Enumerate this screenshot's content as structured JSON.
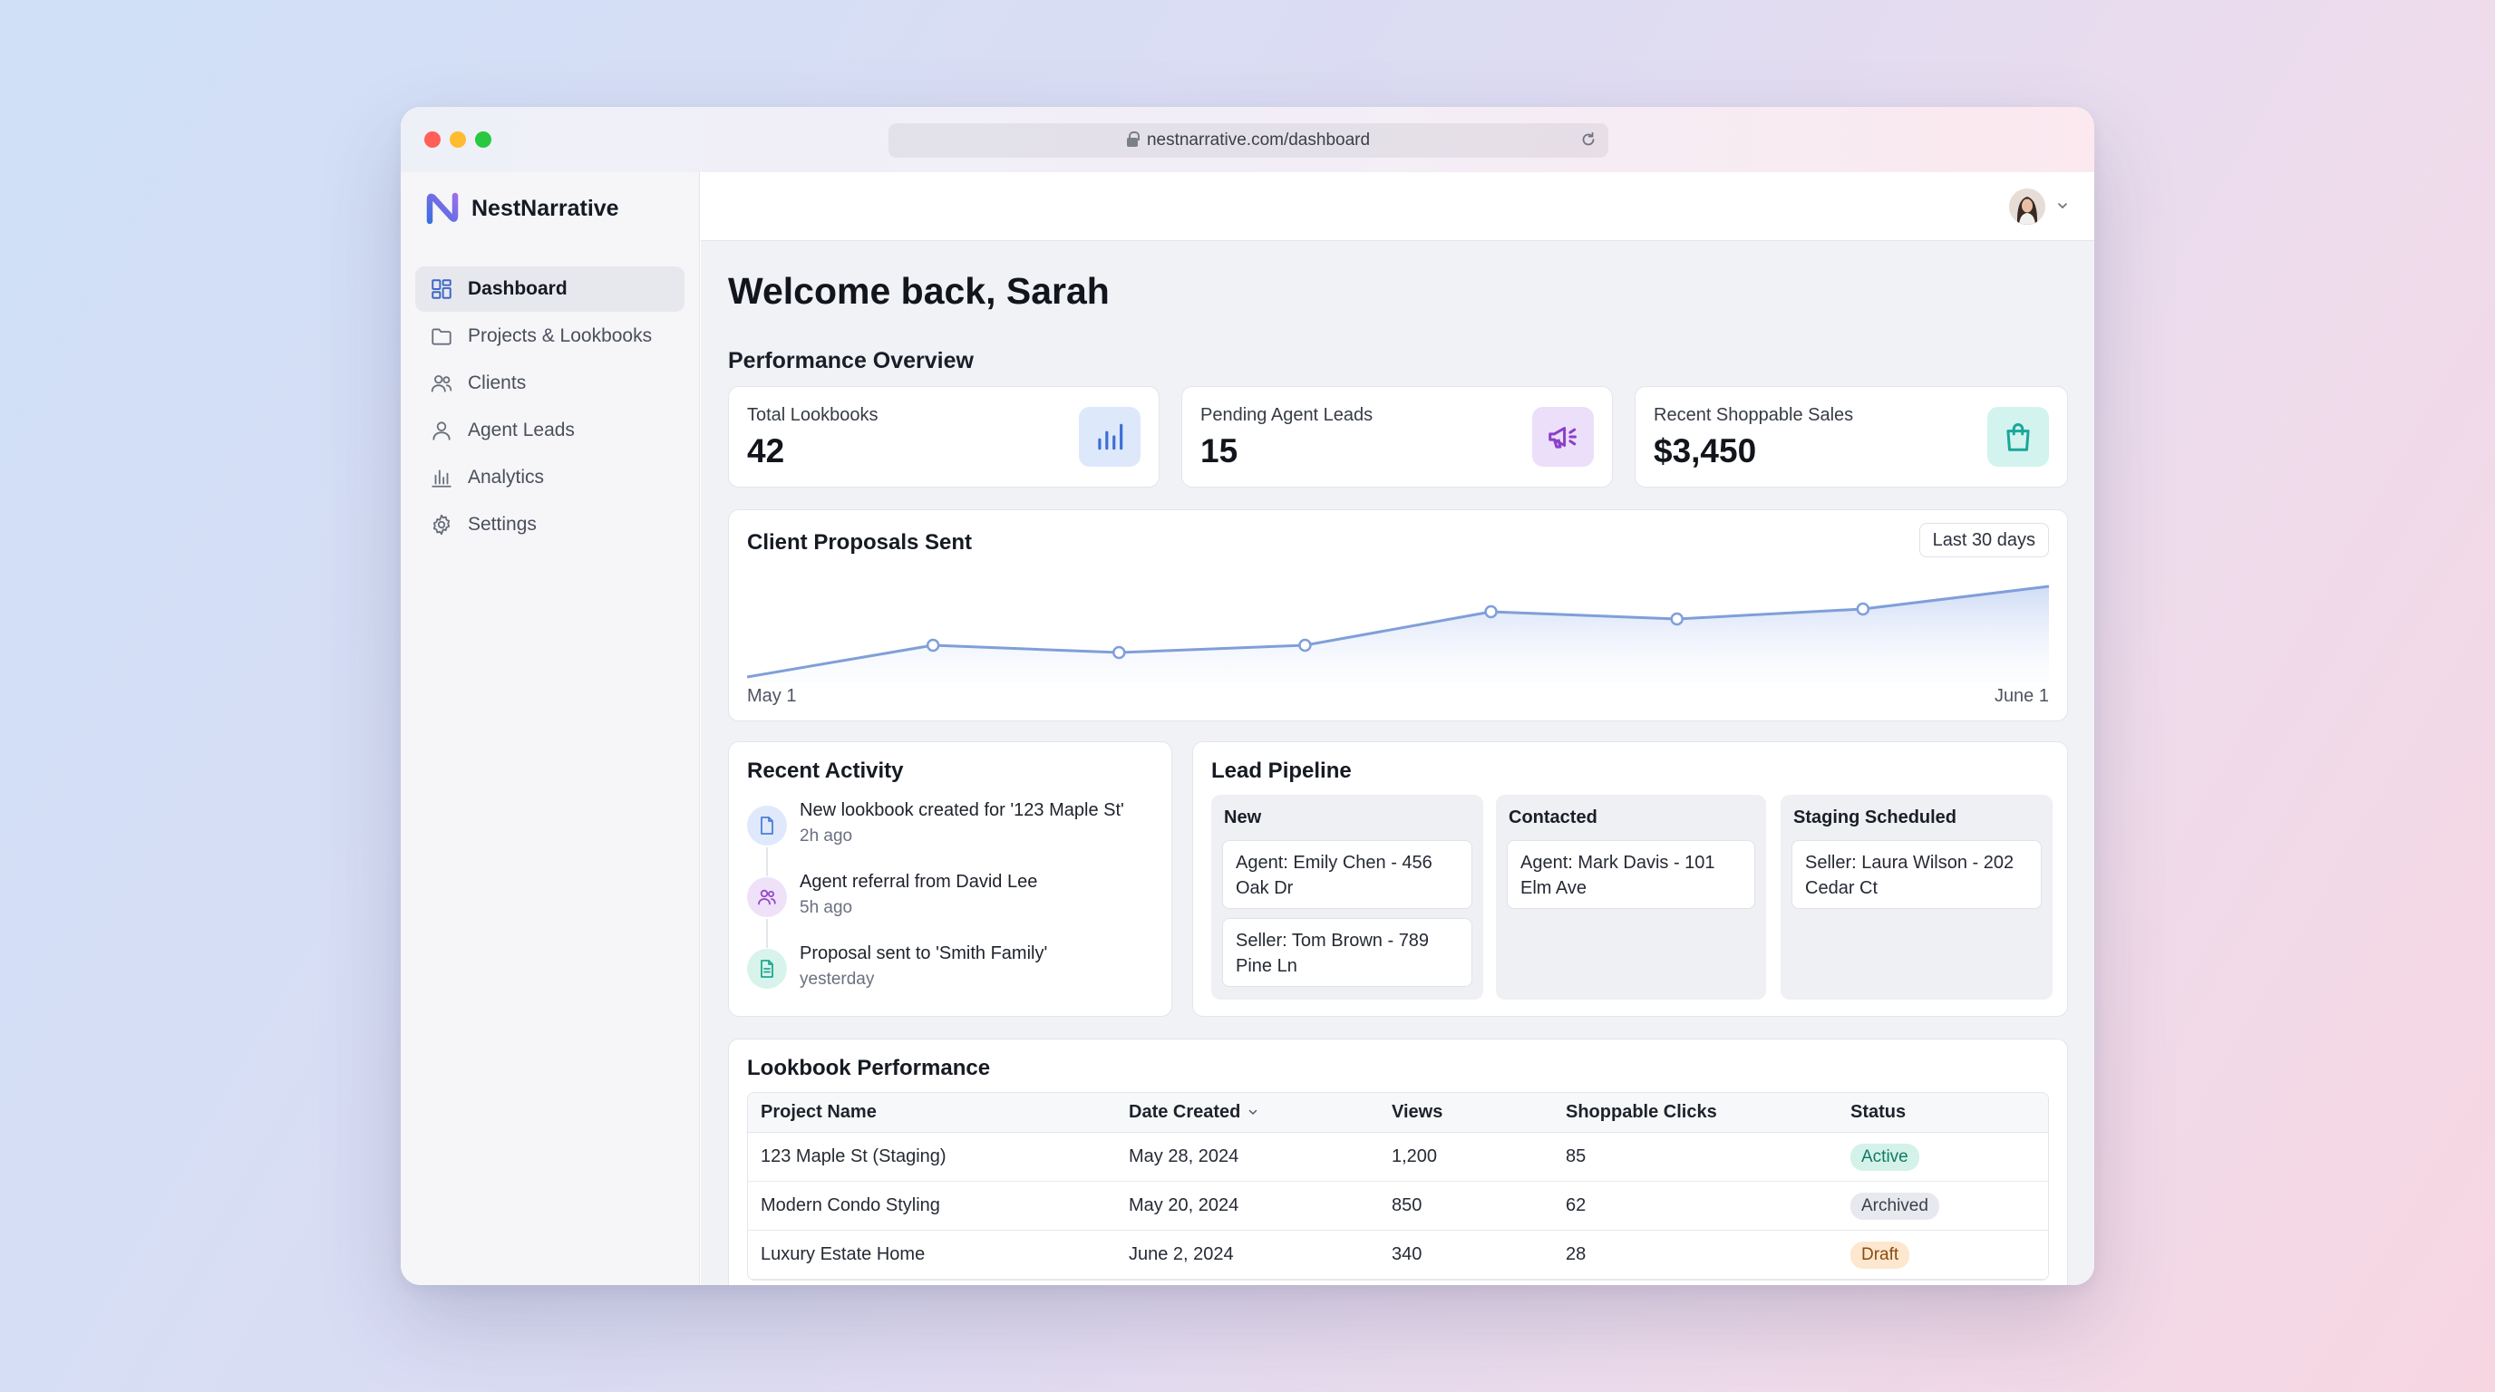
{
  "browser": {
    "url": "nestnarrative.com/dashboard"
  },
  "sidebar": {
    "brand": "NestNarrative",
    "items": [
      {
        "label": "Dashboard",
        "icon": "dashboard-icon",
        "active": true
      },
      {
        "label": "Projects & Lookbooks",
        "icon": "folder-icon",
        "active": false
      },
      {
        "label": "Clients",
        "icon": "users-icon",
        "active": false
      },
      {
        "label": "Agent Leads",
        "icon": "user-icon",
        "active": false
      },
      {
        "label": "Analytics",
        "icon": "bar-chart-icon",
        "active": false
      },
      {
        "label": "Settings",
        "icon": "gear-icon",
        "active": false
      }
    ]
  },
  "main": {
    "welcome": "Welcome back, Sarah",
    "overview_title": "Performance Overview",
    "stats": [
      {
        "label": "Total Lookbooks",
        "value": "42",
        "icon": "bar-chart-icon",
        "color": "#3b6fd4"
      },
      {
        "label": "Pending Agent Leads",
        "value": "15",
        "icon": "megaphone-icon",
        "color": "#8b3fc9"
      },
      {
        "label": "Recent Shoppable Sales",
        "value": "$3,450",
        "icon": "shopping-bag-icon",
        "color": "#1aa79a"
      }
    ]
  },
  "chart": {
    "title": "Client Proposals Sent",
    "range_label": "Last 30 days",
    "x_start_label": "May 1",
    "x_end_label": "June 1"
  },
  "chart_data": {
    "type": "area",
    "title": "Client Proposals Sent",
    "x": [
      "May 1",
      "",
      "",
      "",
      "",
      "",
      "",
      "June 1"
    ],
    "values": [
      0,
      35,
      27,
      35,
      72,
      64,
      75,
      100
    ],
    "ylim": [
      0,
      110
    ],
    "grid": false,
    "color": "#7f9fd9"
  },
  "activity": {
    "title": "Recent Activity",
    "items": [
      {
        "text": "New lookbook created for '123 Maple St'",
        "time": "2h ago",
        "icon": "document-icon",
        "color": "#4a7fd6"
      },
      {
        "text": "Agent referral from David Lee",
        "time": "5h ago",
        "icon": "users-icon",
        "color": "#9448c7"
      },
      {
        "text": "Proposal sent to 'Smith Family'",
        "time": "yesterday",
        "icon": "file-text-icon",
        "color": "#1ea891"
      }
    ]
  },
  "pipeline": {
    "title": "Lead Pipeline",
    "columns": [
      {
        "title": "New",
        "cards": [
          "Agent: Emily Chen - 456 Oak Dr",
          "Seller: Tom Brown - 789 Pine Ln"
        ]
      },
      {
        "title": "Contacted",
        "cards": [
          "Agent: Mark Davis - 101 Elm Ave"
        ]
      },
      {
        "title": "Staging Scheduled",
        "cards": [
          "Seller: Laura Wilson - 202 Cedar Ct"
        ]
      }
    ]
  },
  "table": {
    "title": "Lookbook Performance",
    "headers": [
      "Project Name",
      "Date Created",
      "Views",
      "Shoppable Clicks",
      "Status"
    ],
    "rows": [
      {
        "name": "123 Maple St (Staging)",
        "date": "May 28, 2024",
        "views": "1,200",
        "clicks": "85",
        "status": "Active",
        "status_bg": "#d4f2ea",
        "status_fg": "#137a63"
      },
      {
        "name": "Modern Condo Styling",
        "date": "May 20, 2024",
        "views": "850",
        "clicks": "62",
        "status": "Archived",
        "status_bg": "#e8e9ee",
        "status_fg": "#3a3f4b"
      },
      {
        "name": "Luxury Estate Home",
        "date": "June 2, 2024",
        "views": "340",
        "clicks": "28",
        "status": "Draft",
        "status_bg": "#fde7cf",
        "status_fg": "#8a4b0f"
      }
    ]
  }
}
